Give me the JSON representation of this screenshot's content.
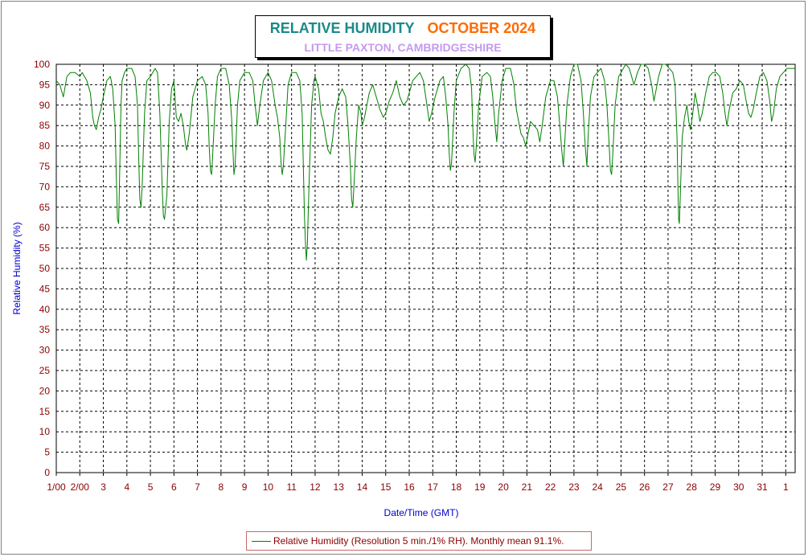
{
  "title": {
    "main": "RELATIVE HUMIDITY",
    "month": "OCTOBER 2024",
    "location": "LITTLE PAXTON, CAMBRIDGESHIRE"
  },
  "colors": {
    "series": "#008000",
    "tick_text": "#8b0000",
    "axis_label": "#0000cc",
    "title_main": "#1b8a8a",
    "title_month": "#ff6a00",
    "title_location": "#c49af0"
  },
  "chart_data": {
    "type": "line",
    "title": "RELATIVE HUMIDITY OCTOBER 2024",
    "subtitle": "LITTLE PAXTON, CAMBRIDGESHIRE",
    "xlabel": "Date/Time (GMT)",
    "ylabel": "Relative Humidity (%)",
    "ylim": [
      0,
      100
    ],
    "xlim": [
      1,
      32.4
    ],
    "grid": true,
    "legend_position": "bottom",
    "y_ticks": [
      "0",
      "5",
      "10",
      "15",
      "20",
      "25",
      "30",
      "35",
      "40",
      "45",
      "50",
      "55",
      "60",
      "65",
      "70",
      "75",
      "80",
      "85",
      "90",
      "95",
      "100"
    ],
    "x_ticks": [
      {
        "x": 1,
        "label": "1/00"
      },
      {
        "x": 2,
        "label": "2/00"
      },
      {
        "x": 3,
        "label": "3"
      },
      {
        "x": 4,
        "label": "4"
      },
      {
        "x": 5,
        "label": "5"
      },
      {
        "x": 6,
        "label": "6"
      },
      {
        "x": 7,
        "label": "7"
      },
      {
        "x": 8,
        "label": "8"
      },
      {
        "x": 9,
        "label": "9"
      },
      {
        "x": 10,
        "label": "10"
      },
      {
        "x": 11,
        "label": "11"
      },
      {
        "x": 12,
        "label": "12"
      },
      {
        "x": 13,
        "label": "13"
      },
      {
        "x": 14,
        "label": "14"
      },
      {
        "x": 15,
        "label": "15"
      },
      {
        "x": 16,
        "label": "16"
      },
      {
        "x": 17,
        "label": "17"
      },
      {
        "x": 18,
        "label": "18"
      },
      {
        "x": 19,
        "label": "19"
      },
      {
        "x": 20,
        "label": "20"
      },
      {
        "x": 21,
        "label": "21"
      },
      {
        "x": 22,
        "label": "22"
      },
      {
        "x": 23,
        "label": "23"
      },
      {
        "x": 24,
        "label": "24"
      },
      {
        "x": 25,
        "label": "25"
      },
      {
        "x": 26,
        "label": "26"
      },
      {
        "x": 27,
        "label": "27"
      },
      {
        "x": 28,
        "label": "28"
      },
      {
        "x": 29,
        "label": "29"
      },
      {
        "x": 30,
        "label": "30"
      },
      {
        "x": 31,
        "label": "31"
      },
      {
        "x": 32,
        "label": "1"
      }
    ],
    "series": [
      {
        "name": "Relative Humidity (Resolution 5 min./1% RH). Monthly mean 91.1%.",
        "points": [
          [
            1.0,
            96
          ],
          [
            1.15,
            95
          ],
          [
            1.3,
            92
          ],
          [
            1.45,
            97
          ],
          [
            1.6,
            98
          ],
          [
            1.8,
            98
          ],
          [
            2.0,
            97
          ],
          [
            2.1,
            98
          ],
          [
            2.3,
            96
          ],
          [
            2.45,
            93
          ],
          [
            2.55,
            87
          ],
          [
            2.62,
            85
          ],
          [
            2.7,
            84
          ],
          [
            2.8,
            87
          ],
          [
            2.9,
            89
          ],
          [
            3.0,
            92
          ],
          [
            3.15,
            96
          ],
          [
            3.3,
            97
          ],
          [
            3.4,
            94
          ],
          [
            3.5,
            85
          ],
          [
            3.55,
            73
          ],
          [
            3.6,
            62
          ],
          [
            3.65,
            61
          ],
          [
            3.7,
            75
          ],
          [
            3.75,
            90
          ],
          [
            3.8,
            96
          ],
          [
            3.9,
            98
          ],
          [
            4.0,
            99
          ],
          [
            4.2,
            99
          ],
          [
            4.35,
            97
          ],
          [
            4.45,
            90
          ],
          [
            4.5,
            78
          ],
          [
            4.55,
            67
          ],
          [
            4.6,
            65
          ],
          [
            4.65,
            70
          ],
          [
            4.75,
            88
          ],
          [
            4.85,
            96
          ],
          [
            5.0,
            97
          ],
          [
            5.2,
            99
          ],
          [
            5.3,
            98
          ],
          [
            5.4,
            88
          ],
          [
            5.5,
            70
          ],
          [
            5.55,
            63
          ],
          [
            5.6,
            62
          ],
          [
            5.7,
            68
          ],
          [
            5.8,
            86
          ],
          [
            5.9,
            94
          ],
          [
            6.0,
            96
          ],
          [
            6.1,
            87
          ],
          [
            6.2,
            86
          ],
          [
            6.3,
            88
          ],
          [
            6.4,
            85
          ],
          [
            6.5,
            80
          ],
          [
            6.55,
            79
          ],
          [
            6.65,
            83
          ],
          [
            6.8,
            92
          ],
          [
            7.0,
            96
          ],
          [
            7.2,
            97
          ],
          [
            7.35,
            95
          ],
          [
            7.45,
            88
          ],
          [
            7.5,
            80
          ],
          [
            7.55,
            74
          ],
          [
            7.6,
            73
          ],
          [
            7.65,
            78
          ],
          [
            7.75,
            90
          ],
          [
            7.85,
            97
          ],
          [
            8.0,
            99
          ],
          [
            8.2,
            99
          ],
          [
            8.35,
            95
          ],
          [
            8.45,
            87
          ],
          [
            8.5,
            80
          ],
          [
            8.55,
            73
          ],
          [
            8.6,
            75
          ],
          [
            8.7,
            90
          ],
          [
            8.8,
            96
          ],
          [
            9.0,
            98
          ],
          [
            9.2,
            98
          ],
          [
            9.35,
            96
          ],
          [
            9.45,
            90
          ],
          [
            9.55,
            85
          ],
          [
            9.65,
            90
          ],
          [
            9.8,
            96
          ],
          [
            10.0,
            98
          ],
          [
            10.15,
            96
          ],
          [
            10.3,
            90
          ],
          [
            10.4,
            87
          ],
          [
            10.5,
            82
          ],
          [
            10.55,
            76
          ],
          [
            10.6,
            73
          ],
          [
            10.65,
            75
          ],
          [
            10.75,
            85
          ],
          [
            10.85,
            95
          ],
          [
            11.0,
            98
          ],
          [
            11.2,
            98
          ],
          [
            11.35,
            96
          ],
          [
            11.45,
            88
          ],
          [
            11.5,
            75
          ],
          [
            11.55,
            62
          ],
          [
            11.6,
            55
          ],
          [
            11.63,
            52
          ],
          [
            11.67,
            56
          ],
          [
            11.75,
            72
          ],
          [
            11.85,
            90
          ],
          [
            11.95,
            96
          ],
          [
            12.0,
            97
          ],
          [
            12.15,
            94
          ],
          [
            12.25,
            88
          ],
          [
            12.35,
            86
          ],
          [
            12.45,
            82
          ],
          [
            12.55,
            79
          ],
          [
            12.65,
            78
          ],
          [
            12.75,
            82
          ],
          [
            12.85,
            88
          ],
          [
            13.0,
            92
          ],
          [
            13.15,
            94
          ],
          [
            13.3,
            92
          ],
          [
            13.4,
            85
          ],
          [
            13.5,
            75
          ],
          [
            13.55,
            67
          ],
          [
            13.6,
            65
          ],
          [
            13.65,
            70
          ],
          [
            13.75,
            82
          ],
          [
            13.85,
            90
          ],
          [
            13.95,
            88
          ],
          [
            14.0,
            85
          ],
          [
            14.1,
            87
          ],
          [
            14.2,
            90
          ],
          [
            14.3,
            93
          ],
          [
            14.45,
            95
          ],
          [
            14.6,
            92
          ],
          [
            14.75,
            89
          ],
          [
            14.9,
            87
          ],
          [
            15.0,
            88
          ],
          [
            15.15,
            91
          ],
          [
            15.3,
            93
          ],
          [
            15.45,
            96
          ],
          [
            15.6,
            92
          ],
          [
            15.75,
            90
          ],
          [
            15.9,
            91
          ],
          [
            16.0,
            93
          ],
          [
            16.15,
            96
          ],
          [
            16.3,
            97
          ],
          [
            16.45,
            98
          ],
          [
            16.6,
            96
          ],
          [
            16.75,
            90
          ],
          [
            16.85,
            86
          ],
          [
            16.95,
            88
          ],
          [
            17.1,
            92
          ],
          [
            17.3,
            96
          ],
          [
            17.45,
            97
          ],
          [
            17.55,
            92
          ],
          [
            17.65,
            85
          ],
          [
            17.7,
            78
          ],
          [
            17.75,
            74
          ],
          [
            17.8,
            76
          ],
          [
            17.9,
            88
          ],
          [
            18.0,
            96
          ],
          [
            18.2,
            99
          ],
          [
            18.4,
            100
          ],
          [
            18.55,
            99
          ],
          [
            18.65,
            94
          ],
          [
            18.7,
            85
          ],
          [
            18.75,
            78
          ],
          [
            18.8,
            76
          ],
          [
            18.85,
            80
          ],
          [
            18.95,
            90
          ],
          [
            19.1,
            97
          ],
          [
            19.3,
            98
          ],
          [
            19.45,
            97
          ],
          [
            19.55,
            92
          ],
          [
            19.65,
            85
          ],
          [
            19.72,
            81
          ],
          [
            19.8,
            88
          ],
          [
            19.95,
            96
          ],
          [
            20.1,
            99
          ],
          [
            20.3,
            99
          ],
          [
            20.45,
            95
          ],
          [
            20.55,
            89
          ],
          [
            20.65,
            86
          ],
          [
            20.75,
            83
          ],
          [
            20.85,
            82
          ],
          [
            20.95,
            80
          ],
          [
            21.05,
            83
          ],
          [
            21.15,
            86
          ],
          [
            21.3,
            85
          ],
          [
            21.45,
            84
          ],
          [
            21.55,
            81
          ],
          [
            21.65,
            85
          ],
          [
            21.8,
            92
          ],
          [
            22.0,
            96
          ],
          [
            22.15,
            96
          ],
          [
            22.3,
            92
          ],
          [
            22.4,
            85
          ],
          [
            22.48,
            79
          ],
          [
            22.55,
            75
          ],
          [
            22.6,
            80
          ],
          [
            22.7,
            90
          ],
          [
            22.85,
            97
          ],
          [
            23.0,
            100
          ],
          [
            23.15,
            100
          ],
          [
            23.3,
            96
          ],
          [
            23.4,
            88
          ],
          [
            23.48,
            80
          ],
          [
            23.55,
            75
          ],
          [
            23.6,
            82
          ],
          [
            23.7,
            92
          ],
          [
            23.85,
            97
          ],
          [
            24.0,
            98
          ],
          [
            24.15,
            99
          ],
          [
            24.3,
            96
          ],
          [
            24.4,
            90
          ],
          [
            24.48,
            82
          ],
          [
            24.55,
            74
          ],
          [
            24.6,
            73
          ],
          [
            24.65,
            78
          ],
          [
            24.75,
            90
          ],
          [
            24.9,
            97
          ],
          [
            25.0,
            98
          ],
          [
            25.2,
            100
          ],
          [
            25.35,
            99
          ],
          [
            25.45,
            97
          ],
          [
            25.55,
            95
          ],
          [
            25.7,
            98
          ],
          [
            25.85,
            100
          ],
          [
            26.0,
            100
          ],
          [
            26.15,
            99
          ],
          [
            26.3,
            95
          ],
          [
            26.4,
            91
          ],
          [
            26.5,
            94
          ],
          [
            26.6,
            97
          ],
          [
            26.75,
            100
          ],
          [
            26.9,
            100
          ],
          [
            27.05,
            99
          ],
          [
            27.2,
            98
          ],
          [
            27.3,
            95
          ],
          [
            27.38,
            82
          ],
          [
            27.42,
            70
          ],
          [
            27.45,
            62
          ],
          [
            27.48,
            61
          ],
          [
            27.52,
            68
          ],
          [
            27.6,
            82
          ],
          [
            27.7,
            87
          ],
          [
            27.8,
            90
          ],
          [
            27.88,
            86
          ],
          [
            27.95,
            84
          ],
          [
            28.05,
            88
          ],
          [
            28.15,
            93
          ],
          [
            28.25,
            90
          ],
          [
            28.35,
            86
          ],
          [
            28.45,
            88
          ],
          [
            28.6,
            93
          ],
          [
            28.75,
            97
          ],
          [
            28.9,
            98
          ],
          [
            29.05,
            98
          ],
          [
            29.2,
            97
          ],
          [
            29.32,
            93
          ],
          [
            29.42,
            88
          ],
          [
            29.5,
            85
          ],
          [
            29.6,
            89
          ],
          [
            29.75,
            93
          ],
          [
            29.9,
            94
          ],
          [
            30.05,
            96
          ],
          [
            30.2,
            95
          ],
          [
            30.32,
            91
          ],
          [
            30.42,
            88
          ],
          [
            30.52,
            87
          ],
          [
            30.62,
            89
          ],
          [
            30.75,
            93
          ],
          [
            30.9,
            97
          ],
          [
            31.05,
            98
          ],
          [
            31.2,
            96
          ],
          [
            31.32,
            91
          ],
          [
            31.4,
            86
          ],
          [
            31.48,
            88
          ],
          [
            31.6,
            94
          ],
          [
            31.75,
            97
          ],
          [
            31.9,
            98
          ],
          [
            32.05,
            99
          ],
          [
            32.2,
            99
          ],
          [
            32.4,
            99
          ]
        ]
      }
    ]
  },
  "legend": {
    "text": "Relative Humidity (Resolution 5 min./1% RH). Monthly mean 91.1%."
  }
}
